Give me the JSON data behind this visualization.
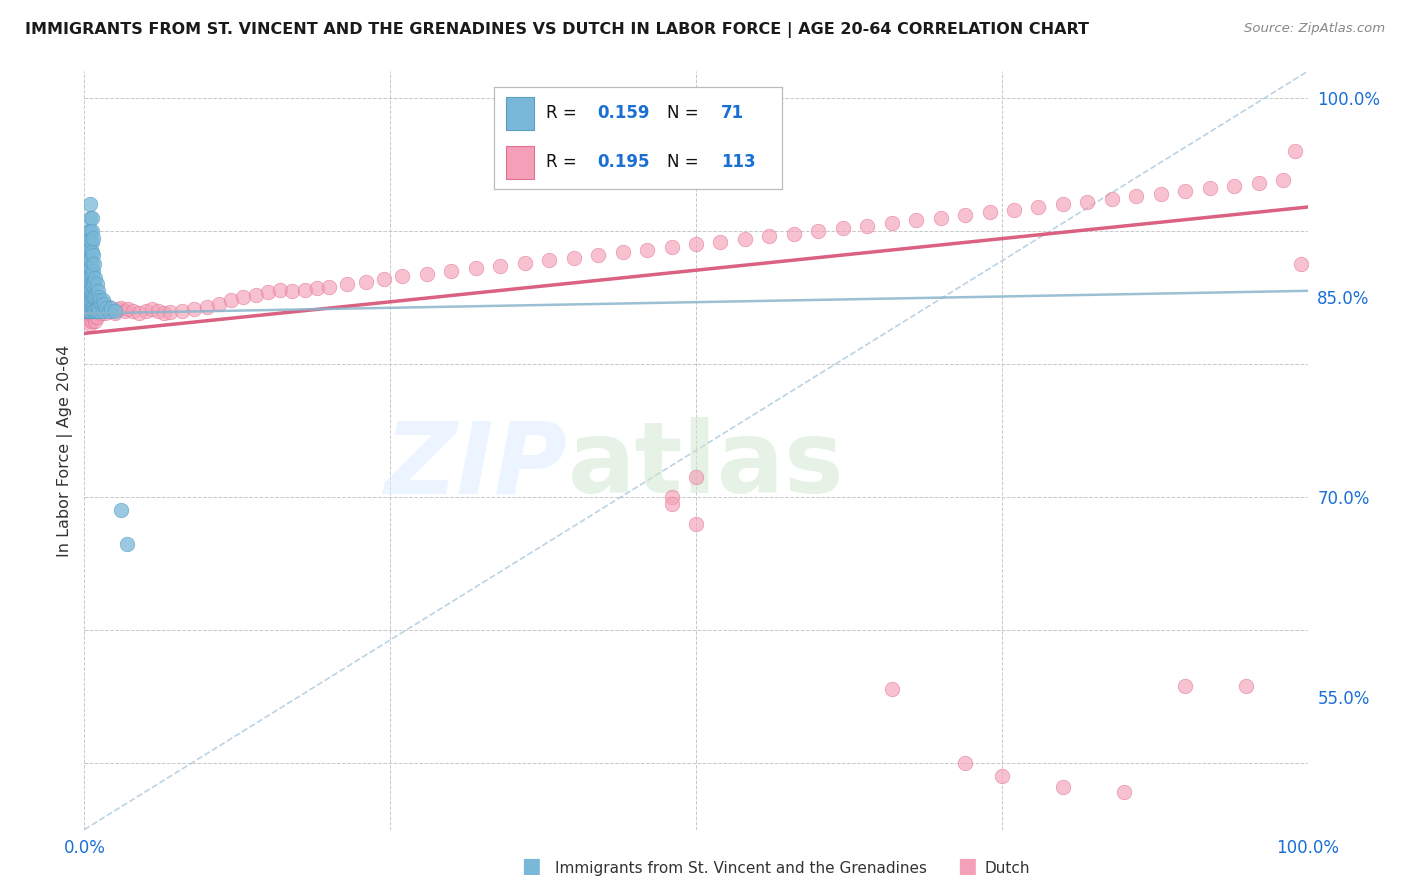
{
  "title": "IMMIGRANTS FROM ST. VINCENT AND THE GRENADINES VS DUTCH IN LABOR FORCE | AGE 20-64 CORRELATION CHART",
  "source": "Source: ZipAtlas.com",
  "ylabel": "In Labor Force | Age 20-64",
  "xlim": [
    0.0,
    1.0
  ],
  "ylim": [
    0.45,
    1.02
  ],
  "ytick_positions": [
    0.55,
    0.7,
    0.85,
    1.0
  ],
  "ytick_labels_right": [
    "55.0%",
    "70.0%",
    "85.0%",
    "100.0%"
  ],
  "color_blue": "#7ab8d9",
  "color_blue_edge": "#5a9ec0",
  "color_pink": "#f4a0b8",
  "color_pink_edge": "#e07090",
  "color_trendline_pink": "#d9587a",
  "color_trendline_blue": "#8ab4cc",
  "color_diagonal": "#aac8dc",
  "color_title": "#1a1a1a",
  "color_axis_blue": "#1a6fd4",
  "color_legend_text_blue": "#1a6fd4",
  "color_legend_r": "#111111",
  "trendline_pink_y_start": 0.823,
  "trendline_pink_y_end": 0.918,
  "trendline_blue_y_start": 0.838,
  "trendline_blue_y_end": 0.855,
  "blue_scatter_x": [
    0.002,
    0.003,
    0.003,
    0.003,
    0.003,
    0.004,
    0.004,
    0.004,
    0.004,
    0.004,
    0.004,
    0.004,
    0.004,
    0.004,
    0.004,
    0.005,
    0.005,
    0.005,
    0.005,
    0.005,
    0.005,
    0.005,
    0.005,
    0.005,
    0.005,
    0.005,
    0.005,
    0.005,
    0.005,
    0.005,
    0.006,
    0.006,
    0.006,
    0.006,
    0.006,
    0.006,
    0.006,
    0.006,
    0.006,
    0.007,
    0.007,
    0.007,
    0.007,
    0.007,
    0.007,
    0.007,
    0.008,
    0.008,
    0.008,
    0.008,
    0.009,
    0.009,
    0.009,
    0.01,
    0.01,
    0.01,
    0.011,
    0.011,
    0.012,
    0.012,
    0.013,
    0.014,
    0.015,
    0.015,
    0.016,
    0.018,
    0.02,
    0.022,
    0.025,
    0.03,
    0.035
  ],
  "blue_scatter_y": [
    0.84,
    0.885,
    0.87,
    0.855,
    0.84,
    0.9,
    0.89,
    0.88,
    0.87,
    0.86,
    0.85,
    0.845,
    0.843,
    0.842,
    0.84,
    0.92,
    0.91,
    0.9,
    0.893,
    0.886,
    0.878,
    0.872,
    0.866,
    0.86,
    0.855,
    0.85,
    0.847,
    0.844,
    0.842,
    0.84,
    0.91,
    0.9,
    0.892,
    0.884,
    0.876,
    0.868,
    0.86,
    0.852,
    0.842,
    0.895,
    0.882,
    0.87,
    0.86,
    0.85,
    0.842,
    0.84,
    0.875,
    0.862,
    0.85,
    0.84,
    0.865,
    0.85,
    0.84,
    0.86,
    0.85,
    0.84,
    0.855,
    0.842,
    0.85,
    0.84,
    0.848,
    0.845,
    0.848,
    0.84,
    0.845,
    0.842,
    0.84,
    0.842,
    0.84,
    0.69,
    0.665
  ],
  "pink_scatter_x": [
    0.002,
    0.002,
    0.003,
    0.003,
    0.003,
    0.004,
    0.004,
    0.004,
    0.004,
    0.005,
    0.005,
    0.005,
    0.005,
    0.005,
    0.006,
    0.006,
    0.006,
    0.007,
    0.007,
    0.008,
    0.008,
    0.009,
    0.009,
    0.01,
    0.01,
    0.011,
    0.012,
    0.013,
    0.014,
    0.015,
    0.016,
    0.017,
    0.018,
    0.02,
    0.022,
    0.025,
    0.028,
    0.03,
    0.033,
    0.036,
    0.04,
    0.045,
    0.05,
    0.055,
    0.06,
    0.065,
    0.07,
    0.08,
    0.09,
    0.1,
    0.11,
    0.12,
    0.13,
    0.14,
    0.15,
    0.16,
    0.17,
    0.18,
    0.19,
    0.2,
    0.215,
    0.23,
    0.245,
    0.26,
    0.28,
    0.3,
    0.32,
    0.34,
    0.36,
    0.38,
    0.4,
    0.42,
    0.44,
    0.46,
    0.48,
    0.5,
    0.52,
    0.54,
    0.56,
    0.58,
    0.6,
    0.62,
    0.64,
    0.66,
    0.68,
    0.7,
    0.72,
    0.74,
    0.76,
    0.78,
    0.8,
    0.82,
    0.84,
    0.86,
    0.88,
    0.9,
    0.92,
    0.94,
    0.96,
    0.98,
    0.48,
    0.5,
    0.66,
    0.72,
    0.75,
    0.8,
    0.85,
    0.9,
    0.95,
    0.99,
    0.48,
    0.5,
    0.995
  ],
  "pink_scatter_y": [
    0.85,
    0.84,
    0.856,
    0.844,
    0.838,
    0.852,
    0.844,
    0.838,
    0.834,
    0.855,
    0.844,
    0.836,
    0.832,
    0.83,
    0.846,
    0.838,
    0.832,
    0.844,
    0.836,
    0.848,
    0.836,
    0.843,
    0.832,
    0.845,
    0.835,
    0.84,
    0.84,
    0.843,
    0.838,
    0.842,
    0.841,
    0.838,
    0.842,
    0.843,
    0.84,
    0.838,
    0.841,
    0.842,
    0.84,
    0.841,
    0.84,
    0.838,
    0.84,
    0.841,
    0.84,
    0.838,
    0.839,
    0.84,
    0.841,
    0.843,
    0.845,
    0.848,
    0.85,
    0.852,
    0.854,
    0.856,
    0.855,
    0.856,
    0.857,
    0.858,
    0.86,
    0.862,
    0.864,
    0.866,
    0.868,
    0.87,
    0.872,
    0.874,
    0.876,
    0.878,
    0.88,
    0.882,
    0.884,
    0.886,
    0.888,
    0.89,
    0.892,
    0.894,
    0.896,
    0.898,
    0.9,
    0.902,
    0.904,
    0.906,
    0.908,
    0.91,
    0.912,
    0.914,
    0.916,
    0.918,
    0.92,
    0.922,
    0.924,
    0.926,
    0.928,
    0.93,
    0.932,
    0.934,
    0.936,
    0.938,
    0.7,
    0.715,
    0.556,
    0.5,
    0.49,
    0.482,
    0.478,
    0.558,
    0.558,
    0.96,
    0.695,
    0.68,
    0.875
  ]
}
